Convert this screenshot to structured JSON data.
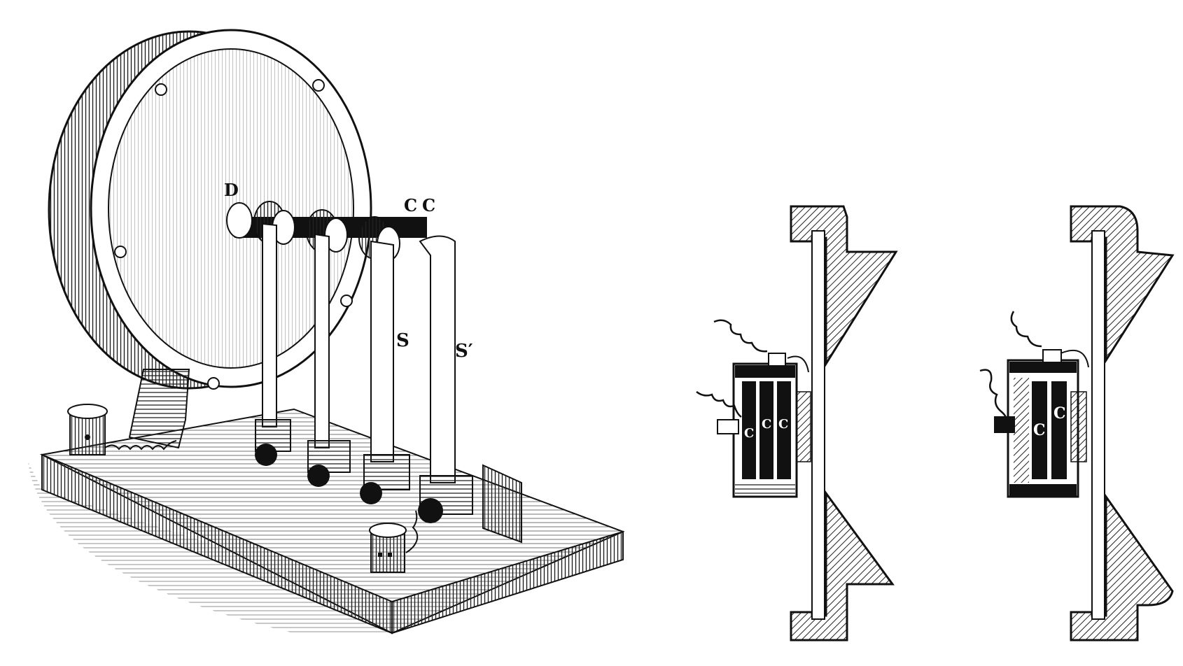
{
  "figure": {
    "labels": {
      "D": "D",
      "C1": "C",
      "C2": "C",
      "S": "S",
      "S_prime": "S′",
      "sec1_c1": "C",
      "sec1_c2": "C",
      "sec1_c3": "C",
      "sec2_c1": "C",
      "sec2_c2": "C"
    },
    "colors": {
      "ink": "#111111",
      "paper": "#ffffff",
      "hatch": "#444444"
    }
  }
}
